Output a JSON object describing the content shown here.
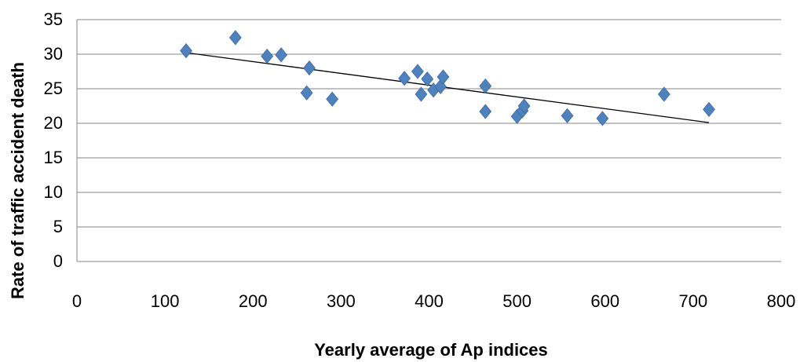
{
  "chart_data": {
    "type": "scatter",
    "title": "",
    "xlabel": "Yearly average of Ap indices",
    "ylabel": "Rate of traffic accident death",
    "xlim": [
      0,
      800
    ],
    "ylim": [
      0,
      35
    ],
    "x_ticks": [
      0,
      100,
      200,
      300,
      400,
      500,
      600,
      700,
      800
    ],
    "y_ticks": [
      0,
      5,
      10,
      15,
      20,
      25,
      30,
      35
    ],
    "grid": "horizontal",
    "legend": "none",
    "marker": "diamond",
    "marker_color": "#4F81BD",
    "trendline": {
      "type": "linear",
      "color": "#000000",
      "x": [
        125,
        718
      ],
      "y": [
        30.2,
        20.1
      ]
    },
    "series": [
      {
        "points": [
          {
            "x": 124,
            "y": 30.5
          },
          {
            "x": 180,
            "y": 32.4
          },
          {
            "x": 216,
            "y": 29.7
          },
          {
            "x": 232,
            "y": 29.9
          },
          {
            "x": 261,
            "y": 24.4
          },
          {
            "x": 264,
            "y": 28.0
          },
          {
            "x": 290,
            "y": 23.5
          },
          {
            "x": 372,
            "y": 26.5
          },
          {
            "x": 387,
            "y": 27.5
          },
          {
            "x": 391,
            "y": 24.2
          },
          {
            "x": 398,
            "y": 26.4
          },
          {
            "x": 405,
            "y": 24.8
          },
          {
            "x": 413,
            "y": 25.3
          },
          {
            "x": 416,
            "y": 26.7
          },
          {
            "x": 464,
            "y": 25.4
          },
          {
            "x": 464,
            "y": 21.7
          },
          {
            "x": 500,
            "y": 21.0
          },
          {
            "x": 506,
            "y": 21.8
          },
          {
            "x": 508,
            "y": 22.5
          },
          {
            "x": 557,
            "y": 21.1
          },
          {
            "x": 597,
            "y": 20.7
          },
          {
            "x": 667,
            "y": 24.2
          },
          {
            "x": 718,
            "y": 22.0
          }
        ]
      }
    ]
  }
}
